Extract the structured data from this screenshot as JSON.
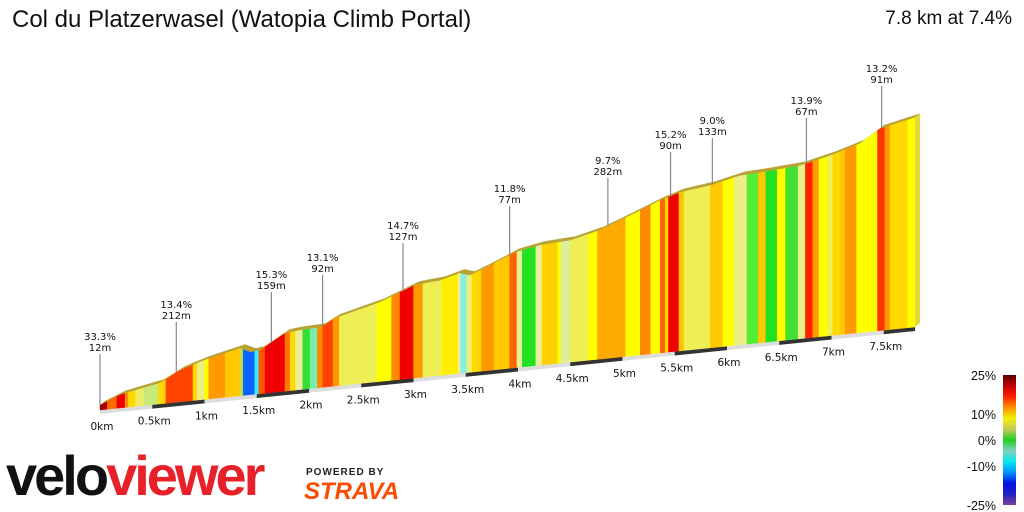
{
  "header": {
    "title": "Col du Platzerwasel (Watopia Climb Portal)",
    "summary": "7.8 km at 7.4%"
  },
  "branding": {
    "logo_part1": "velo",
    "logo_part2": "viewer",
    "powered_by": "POWERED BY",
    "strava": "STRAVA"
  },
  "chart_data": {
    "type": "area",
    "title": "Col du Platzerwasel (Watopia Climb Portal)",
    "distance_km": 7.8,
    "average_grade_pct": 7.4,
    "xlabel": "",
    "ylabel": "",
    "x_ticks": [
      "0km",
      "0.5km",
      "1km",
      "1.5km",
      "2km",
      "2.5km",
      "3km",
      "3.5km",
      "4km",
      "4.5km",
      "5km",
      "5.5km",
      "6km",
      "6.5km",
      "7km",
      "7.5km"
    ],
    "x_tick_values": [
      0,
      0.5,
      1,
      1.5,
      2,
      2.5,
      3,
      3.5,
      4,
      4.5,
      5,
      5.5,
      6,
      6.5,
      7,
      7.5
    ],
    "profile": {
      "km": [
        0,
        0.19,
        0.57,
        0.77,
        1.0,
        1.34,
        1.44,
        1.53,
        1.77,
        1.91,
        2.11,
        2.25,
        2.68,
        2.87,
        3.01,
        3.25,
        3.44,
        3.54,
        3.73,
        3.97,
        4.21,
        4.5,
        4.78,
        5.07,
        5.36,
        5.55,
        5.84,
        6.12,
        6.32,
        6.7,
        6.99,
        7.27,
        7.46,
        7.8
      ],
      "elev_gain_m": [
        0,
        23,
        45,
        76,
        97,
        120,
        106,
        109,
        150,
        154,
        156,
        178,
        210,
        232,
        248,
        254,
        269,
        260,
        282,
        312,
        325,
        330,
        350,
        383,
        417,
        434,
        445,
        464,
        467,
        475,
        495,
        520,
        556,
        578
      ]
    },
    "segments": {
      "start_km": [
        0,
        0.07,
        0.16,
        0.24,
        0.27,
        0.34,
        0.42,
        0.56,
        0.63,
        0.89,
        0.93,
        1.0,
        1.04,
        1.2,
        1.34,
        1.37,
        1.48,
        1.52,
        1.58,
        1.77,
        1.82,
        1.87,
        1.94,
        2.01,
        2.08,
        2.13,
        2.23,
        2.29,
        2.65,
        2.79,
        2.87,
        3.0,
        3.09,
        3.27,
        3.43,
        3.45,
        3.51,
        3.56,
        3.65,
        3.77,
        3.92,
        3.99,
        4.04,
        4.17,
        4.23,
        4.38,
        4.41,
        4.5,
        4.67,
        4.76,
        5.03,
        5.17,
        5.27,
        5.36,
        5.41,
        5.44,
        5.54,
        5.59,
        5.84,
        5.96,
        6.07,
        6.19,
        6.3,
        6.37,
        6.48,
        6.56,
        6.68,
        6.75,
        6.82,
        6.88,
        6.96,
        7.01,
        7.08,
        7.13,
        7.24,
        7.44,
        7.51,
        7.56,
        7.73
      ],
      "color": [
        "#a00000",
        "#ff6a00",
        "#ee0000",
        "#ff8c00",
        "#ffd800",
        "#eeee66",
        "#c8e878",
        "#ffd800",
        "#ff4400",
        "#ffd800",
        "#eeee88",
        "#ffff00",
        "#ff9900",
        "#ffc800",
        "#c8e040",
        "#0a64ff",
        "#33eeff",
        "#ff5500",
        "#f00000",
        "#ff7700",
        "#ffd800",
        "#eeee99",
        "#33dd33",
        "#77eeaa",
        "#ff8800",
        "#ff4400",
        "#ff9900",
        "#eeee55",
        "#ffff00",
        "#ff8800",
        "#f00000",
        "#ff9900",
        "#eeee55",
        "#ffee00",
        "#eeeeaa",
        "#88eedd",
        "#eeee77",
        "#ffd800",
        "#ff9900",
        "#ffc800",
        "#ff6600",
        "#eeee99",
        "#22e022",
        "#eeee99",
        "#ffd000",
        "#ffff00",
        "#ddee99",
        "#eeee55",
        "#ffff00",
        "#ffaa00",
        "#ffff00",
        "#ff8800",
        "#ffff00",
        "#ff6600",
        "#ffd800",
        "#f00000",
        "#ffc800",
        "#eeee55",
        "#ffc800",
        "#ffff00",
        "#eeee88",
        "#55ee33",
        "#ffc800",
        "#22e022",
        "#ffff00",
        "#44e033",
        "#eeee88",
        "#ff2200",
        "#ff9900",
        "#ffff00",
        "#eeee55",
        "#ffd800",
        "#ffc800",
        "#ff9900",
        "#ffff00",
        "#ff3300",
        "#ff9900",
        "#ffd800",
        "#ffff00"
      ]
    },
    "annotations": [
      {
        "km": 0.0,
        "grade": "33.3%",
        "length": "12m"
      },
      {
        "km": 0.73,
        "grade": "13.4%",
        "length": "212m"
      },
      {
        "km": 1.64,
        "grade": "15.3%",
        "length": "159m"
      },
      {
        "km": 2.13,
        "grade": "13.1%",
        "length": "92m"
      },
      {
        "km": 2.9,
        "grade": "14.7%",
        "length": "127m"
      },
      {
        "km": 3.92,
        "grade": "11.8%",
        "length": "77m"
      },
      {
        "km": 4.86,
        "grade": "9.7%",
        "length": "282m"
      },
      {
        "km": 5.46,
        "grade": "15.2%",
        "length": "90m"
      },
      {
        "km": 5.86,
        "grade": "9.0%",
        "length": "133m"
      },
      {
        "km": 6.76,
        "grade": "13.9%",
        "length": "67m"
      },
      {
        "km": 7.48,
        "grade": "13.2%",
        "length": "91m"
      }
    ],
    "legend": {
      "labels": [
        "25%",
        "10%",
        "0%",
        "-10%",
        "-25%"
      ],
      "values": [
        25,
        10,
        0,
        -10,
        -25
      ],
      "gradient": [
        "#5a0000",
        "#c00000",
        "#ff2000",
        "#ff9000",
        "#f0f000",
        "#c8c860",
        "#20d020",
        "#80d0c0",
        "#00e8f0",
        "#0090ff",
        "#0010e0",
        "#2020c0",
        "#8040a0"
      ]
    }
  }
}
